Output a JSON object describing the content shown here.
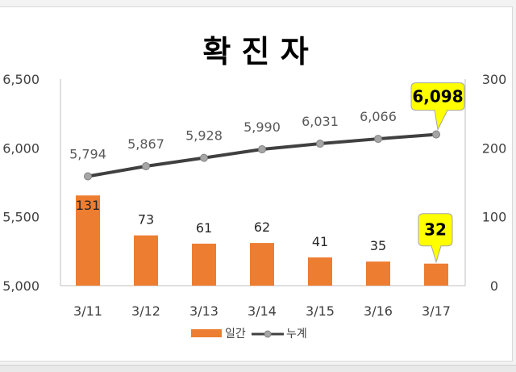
{
  "chart_data": {
    "type": "bar+line",
    "title": "확 진 자",
    "categories": [
      "3/11",
      "3/12",
      "3/13",
      "3/14",
      "3/15",
      "3/16",
      "3/17"
    ],
    "series": [
      {
        "name": "일간",
        "type": "bar",
        "axis": "right",
        "color": "#ed7d31",
        "values": [
          131,
          73,
          61,
          62,
          41,
          35,
          32
        ]
      },
      {
        "name": "누계",
        "type": "line",
        "axis": "left",
        "color": "#404040",
        "marker_color": "#a6a6a6",
        "values": [
          5794,
          5867,
          5928,
          5990,
          6031,
          6066,
          6098
        ]
      }
    ],
    "y_left": {
      "ylim": [
        5000,
        6500
      ],
      "ticks": [
        5000,
        5500,
        6000,
        6500
      ],
      "tick_labels": [
        "5,000",
        "5,500",
        "6,000",
        "6,500"
      ]
    },
    "y_right": {
      "ylim": [
        0,
        300
      ],
      "ticks": [
        0,
        100,
        200,
        300
      ],
      "tick_labels": [
        "0",
        "100",
        "200",
        "300"
      ]
    },
    "data_labels": {
      "line": [
        "5,794",
        "5,867",
        "5,928",
        "5,990",
        "6,031",
        "6,066",
        "6,098"
      ],
      "bar": [
        "131",
        "73",
        "61",
        "62",
        "41",
        "35",
        "32"
      ]
    },
    "callouts": {
      "color": "#ffff00",
      "line_label": "6,098",
      "bar_label": "32"
    },
    "legend": {
      "position": "bottom",
      "items": [
        "일간",
        "누계"
      ]
    },
    "grid": false
  }
}
